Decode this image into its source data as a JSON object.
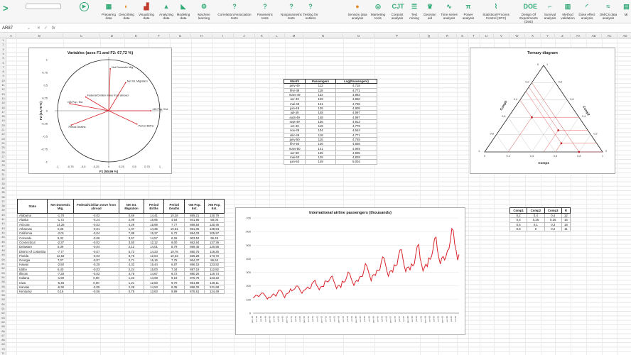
{
  "ribbon": {
    "items": [
      {
        "label": "Preparing data",
        "icon": "▦",
        "color": "#3a7"
      },
      {
        "label": "Describing data",
        "icon": "◐",
        "color": "#e58a1f"
      },
      {
        "label": "Visualizing data",
        "icon": "▟",
        "color": "#c0392b"
      },
      {
        "label": "Analyzing data",
        "icon": "▲",
        "color": "#3a7"
      },
      {
        "label": "Modeling data",
        "icon": "◣",
        "color": "#3a7"
      },
      {
        "label": "Machine learning",
        "icon": "⚙",
        "color": "#3a7"
      },
      {
        "label": "Correlation/Association tests",
        "icon": "?",
        "color": "#3a7"
      },
      {
        "label": "Parametric tests",
        "icon": "?",
        "color": "#3a7"
      },
      {
        "label": "Nonparametric tests",
        "icon": "?",
        "color": "#3a7"
      },
      {
        "label": "Testing for outliers",
        "icon": "?",
        "color": "#3a7"
      },
      {
        "label": "Sensory data analysis",
        "icon": "●",
        "color": "#e58a1f"
      },
      {
        "label": "Marketing tools",
        "icon": "◎",
        "color": "#3a7"
      },
      {
        "label": "Conjoint analysis",
        "icon": "CJT",
        "color": "#3a7"
      },
      {
        "label": "Text mining",
        "icon": "☰",
        "color": "#3a7"
      },
      {
        "label": "Decision aid",
        "icon": "♛",
        "color": "#3a7"
      },
      {
        "label": "Time series analysis",
        "icon": "∿",
        "color": "#3a7"
      },
      {
        "label": "Power analysis",
        "icon": "π",
        "color": "#3a7"
      },
      {
        "label": "Statistical Process Control (SPC)",
        "icon": "⌇",
        "color": "#3a7"
      },
      {
        "label": "Design Of Experiments (DoE)",
        "icon": "DOE",
        "color": "#3a7"
      },
      {
        "label": "Survival analysis",
        "icon": "⌐",
        "color": "#3a7"
      },
      {
        "label": "Method validation",
        "icon": "▥",
        "color": "#3a7"
      },
      {
        "label": "Dose effect analysis",
        "icon": "◜",
        "color": "#3a7"
      },
      {
        "label": "OMICs data analysis",
        "icon": "≈",
        "color": "#3a7"
      },
      {
        "label": "Mi",
        "icon": "▤",
        "color": "#3a7"
      }
    ]
  },
  "formula_bar": {
    "cell_ref": "AR87",
    "fx": "fx",
    "value": ""
  },
  "columns": [
    "A",
    "B",
    "C",
    "D",
    "E",
    "F",
    "G",
    "H",
    "I",
    "J",
    "K",
    "L",
    "M",
    "N",
    "O",
    "P",
    "Q",
    "R",
    "S",
    "T",
    "U",
    "V",
    "W",
    "X",
    "Y",
    "Z",
    "AA",
    "AB",
    "AC",
    "AD",
    "AE"
  ],
  "pca": {
    "title": "Variables (axes F1 and F2: 67,72 %)",
    "xlabel": "F1 (50,96 %)",
    "ylabel": "F2 (16,76 %)",
    "yticks": [
      "1",
      "0,75",
      "0,5",
      "0,25",
      "0",
      "-0,25",
      "-0,5",
      "-0,75",
      "-1"
    ],
    "xticks": [
      "-1",
      "-0,75",
      "-0,5",
      "-0,25",
      "0",
      "0,25",
      "0,5",
      "0,75",
      "1"
    ],
    "vectors": [
      {
        "label": "Net Domestic Mig.",
        "x": 0.03,
        "y": 0.82
      },
      {
        "label": "Net Int. Migration",
        "x": 0.33,
        "y": 0.55
      },
      {
        "label": "Federal/Civilian move from abroad",
        "x": -0.45,
        "y": 0.27
      },
      {
        "label": "<65 Pop. Est.",
        "x": -0.76,
        "y": 0.14
      },
      {
        "label": "Period Deaths",
        "x": -0.73,
        "y": -0.28
      },
      {
        "label": "Period Births",
        "x": 0.55,
        "y": -0.26
      },
      {
        "label": ">65 Pop. Est.",
        "x": 0.82,
        "y": 0.0
      }
    ]
  },
  "passengers": {
    "headers": [
      "Month",
      "Passengers",
      "Log(Passengers)"
    ],
    "rows": [
      [
        "janv-49",
        "112",
        "4,718"
      ],
      [
        "févr-49",
        "118",
        "4,771"
      ],
      [
        "mars-49",
        "132",
        "4,883"
      ],
      [
        "avr-49",
        "129",
        "4,860"
      ],
      [
        "mai-49",
        "121",
        "4,796"
      ],
      [
        "juin-49",
        "135",
        "4,905"
      ],
      [
        "juil-49",
        "148",
        "4,997"
      ],
      [
        "août-49",
        "148",
        "4,997"
      ],
      [
        "sept-49",
        "136",
        "4,913"
      ],
      [
        "oct-49",
        "119",
        "4,779"
      ],
      [
        "nov-49",
        "104",
        "4,644"
      ],
      [
        "déc-49",
        "118",
        "4,771"
      ],
      [
        "janv-50",
        "115",
        "4,745"
      ],
      [
        "févr-50",
        "126",
        "4,836"
      ],
      [
        "mars-50",
        "141",
        "4,949"
      ],
      [
        "avr-50",
        "135",
        "4,905"
      ],
      [
        "mai-50",
        "125",
        "4,828"
      ],
      [
        "juin-50",
        "149",
        "5,004"
      ]
    ]
  },
  "ternary": {
    "title": "Ternary diagram",
    "axes": [
      "Comp1",
      "Comp2",
      "Comp3"
    ],
    "ticks": [
      "0",
      "0,2",
      "0,4",
      "0,6",
      "0,8",
      "1"
    ],
    "points": [
      [
        0.2,
        0.4,
        0.4
      ],
      [
        0.5,
        0.25,
        0.25
      ],
      [
        0.6,
        0.1,
        0.3
      ],
      [
        0.8,
        0,
        0.2
      ]
    ]
  },
  "comp": {
    "headers": [
      "Comp1",
      "Comp2",
      "Comp3",
      "R"
    ],
    "rows": [
      [
        "0,2",
        "0,4",
        "0,4",
        "12"
      ],
      [
        "0,5",
        "0,25",
        "0,25",
        "16"
      ],
      [
        "0,6",
        "0,1",
        "0,3",
        "18"
      ],
      [
        "0,8",
        "0",
        "0,2",
        "11"
      ]
    ]
  },
  "states": {
    "headers": [
      "State",
      "Net Domestic Mig.",
      "Federal/Civilian move from abroad",
      "Net Int. Migration",
      "Period Births",
      "Period Deaths",
      "<65 Pop. Est.",
      ">65 Pop. Est."
    ],
    "rows": [
      [
        "Alabama",
        "-1,78",
        "-0,02",
        "0,69",
        "14,41",
        "10,28",
        "869,21",
        "130,79"
      ],
      [
        "Alaska",
        "-1,72",
        "-0,24",
        "2,09",
        "15,95",
        "4,64",
        "941,95",
        "58,05"
      ],
      [
        "Arizona",
        "14,25",
        "-0,03",
        "4,29",
        "15,88",
        "7,77",
        "869,54",
        "130,46"
      ],
      [
        "Arkansas",
        "0,36",
        "-0,01",
        "1,07",
        "14,35",
        "10,51",
        "861,06",
        "138,94"
      ],
      [
        "California",
        "-2,01",
        "-0,04",
        "7,88",
        "15,37",
        "6,72",
        "894,03",
        "105,97"
      ],
      [
        "Colorado",
        "9,32",
        "-0,06",
        "3,57",
        "14,57",
        "6,26",
        "903,52",
        "96,48"
      ],
      [
        "Connecticut",
        "-2,37",
        "-0,02",
        "3,50",
        "12,12",
        "9,00",
        "862,64",
        "137,36"
      ],
      [
        "Delaware",
        "5,39",
        "-0,04",
        "2,12",
        "14,01",
        "8,79",
        "869,45",
        "130,55"
      ],
      [
        "District of Columbia",
        "-7,77",
        "-0,07",
        "5,73",
        "14,33",
        "10,76",
        "880,75",
        "119,25"
      ],
      [
        "Florida",
        "12,52",
        "-0,03",
        "5,76",
        "12,54",
        "10,33",
        "826,28",
        "173,72"
      ],
      [
        "Georgia",
        "7,07",
        "-0,07",
        "2,71",
        "16,16",
        "7,75",
        "904,37",
        "95,63"
      ],
      [
        "Hawaii",
        "-2,50",
        "-0,29",
        "4,32",
        "15,44",
        "6,87",
        "866,18",
        "133,82"
      ],
      [
        "Idaho",
        "6,40",
        "-0,03",
        "2,24",
        "15,00",
        "7,34",
        "887,18",
        "112,82"
      ],
      [
        "Illinois",
        "-7,28",
        "-0,02",
        "4,76",
        "14,87",
        "8,72",
        "880,26",
        "119,74"
      ],
      [
        "Indiana",
        "-1,99",
        "0,00",
        "1,23",
        "14,08",
        "9,19",
        "876,78",
        "123,22"
      ],
      [
        "Iowa",
        "-5,48",
        "0,00",
        "1,21",
        "12,83",
        "9,70",
        "851,89",
        "148,11"
      ],
      [
        "Kansas",
        "-6,36",
        "-0,05",
        "2,28",
        "14,53",
        "9,35",
        "868,32",
        "131,68"
      ],
      [
        "Kentucky",
        "0,15",
        "-0,06",
        "0,75",
        "13,63",
        "9,89",
        "875,51",
        "124,49"
      ]
    ]
  },
  "chart_data": {
    "type": "line",
    "title": "International airline passengers (thousands)",
    "ylim": [
      0,
      700
    ],
    "yticks": [
      "0",
      "100",
      "200",
      "300",
      "400",
      "500",
      "600",
      "700"
    ],
    "values": [
      112,
      118,
      132,
      129,
      121,
      135,
      148,
      148,
      136,
      119,
      104,
      118,
      115,
      126,
      141,
      135,
      125,
      149,
      170,
      170,
      158,
      133,
      114,
      140,
      145,
      150,
      178,
      163,
      172,
      178,
      199,
      199,
      184,
      162,
      146,
      166,
      171,
      180,
      193,
      181,
      183,
      218,
      230,
      242,
      209,
      191,
      172,
      194,
      196,
      196,
      236,
      235,
      229,
      243,
      264,
      272,
      237,
      211,
      180,
      201,
      204,
      188,
      235,
      227,
      234,
      264,
      302,
      293,
      259,
      229,
      203,
      229,
      242,
      233,
      267,
      269,
      270,
      315,
      364,
      347,
      312,
      274,
      237,
      278,
      284,
      277,
      317,
      313,
      318,
      374,
      413,
      405,
      355,
      306,
      271,
      306,
      315,
      301,
      356,
      348,
      355,
      422,
      465,
      467,
      404,
      347,
      305,
      336,
      340,
      318,
      362,
      348,
      363,
      435,
      491,
      505,
      404,
      359,
      310,
      337,
      360,
      342,
      406,
      396,
      420,
      472,
      548,
      559,
      463,
      407,
      362,
      405,
      417,
      391,
      419,
      461,
      472,
      535,
      622,
      606,
      508,
      461,
      390,
      432
    ],
    "color": "#d9232a"
  }
}
